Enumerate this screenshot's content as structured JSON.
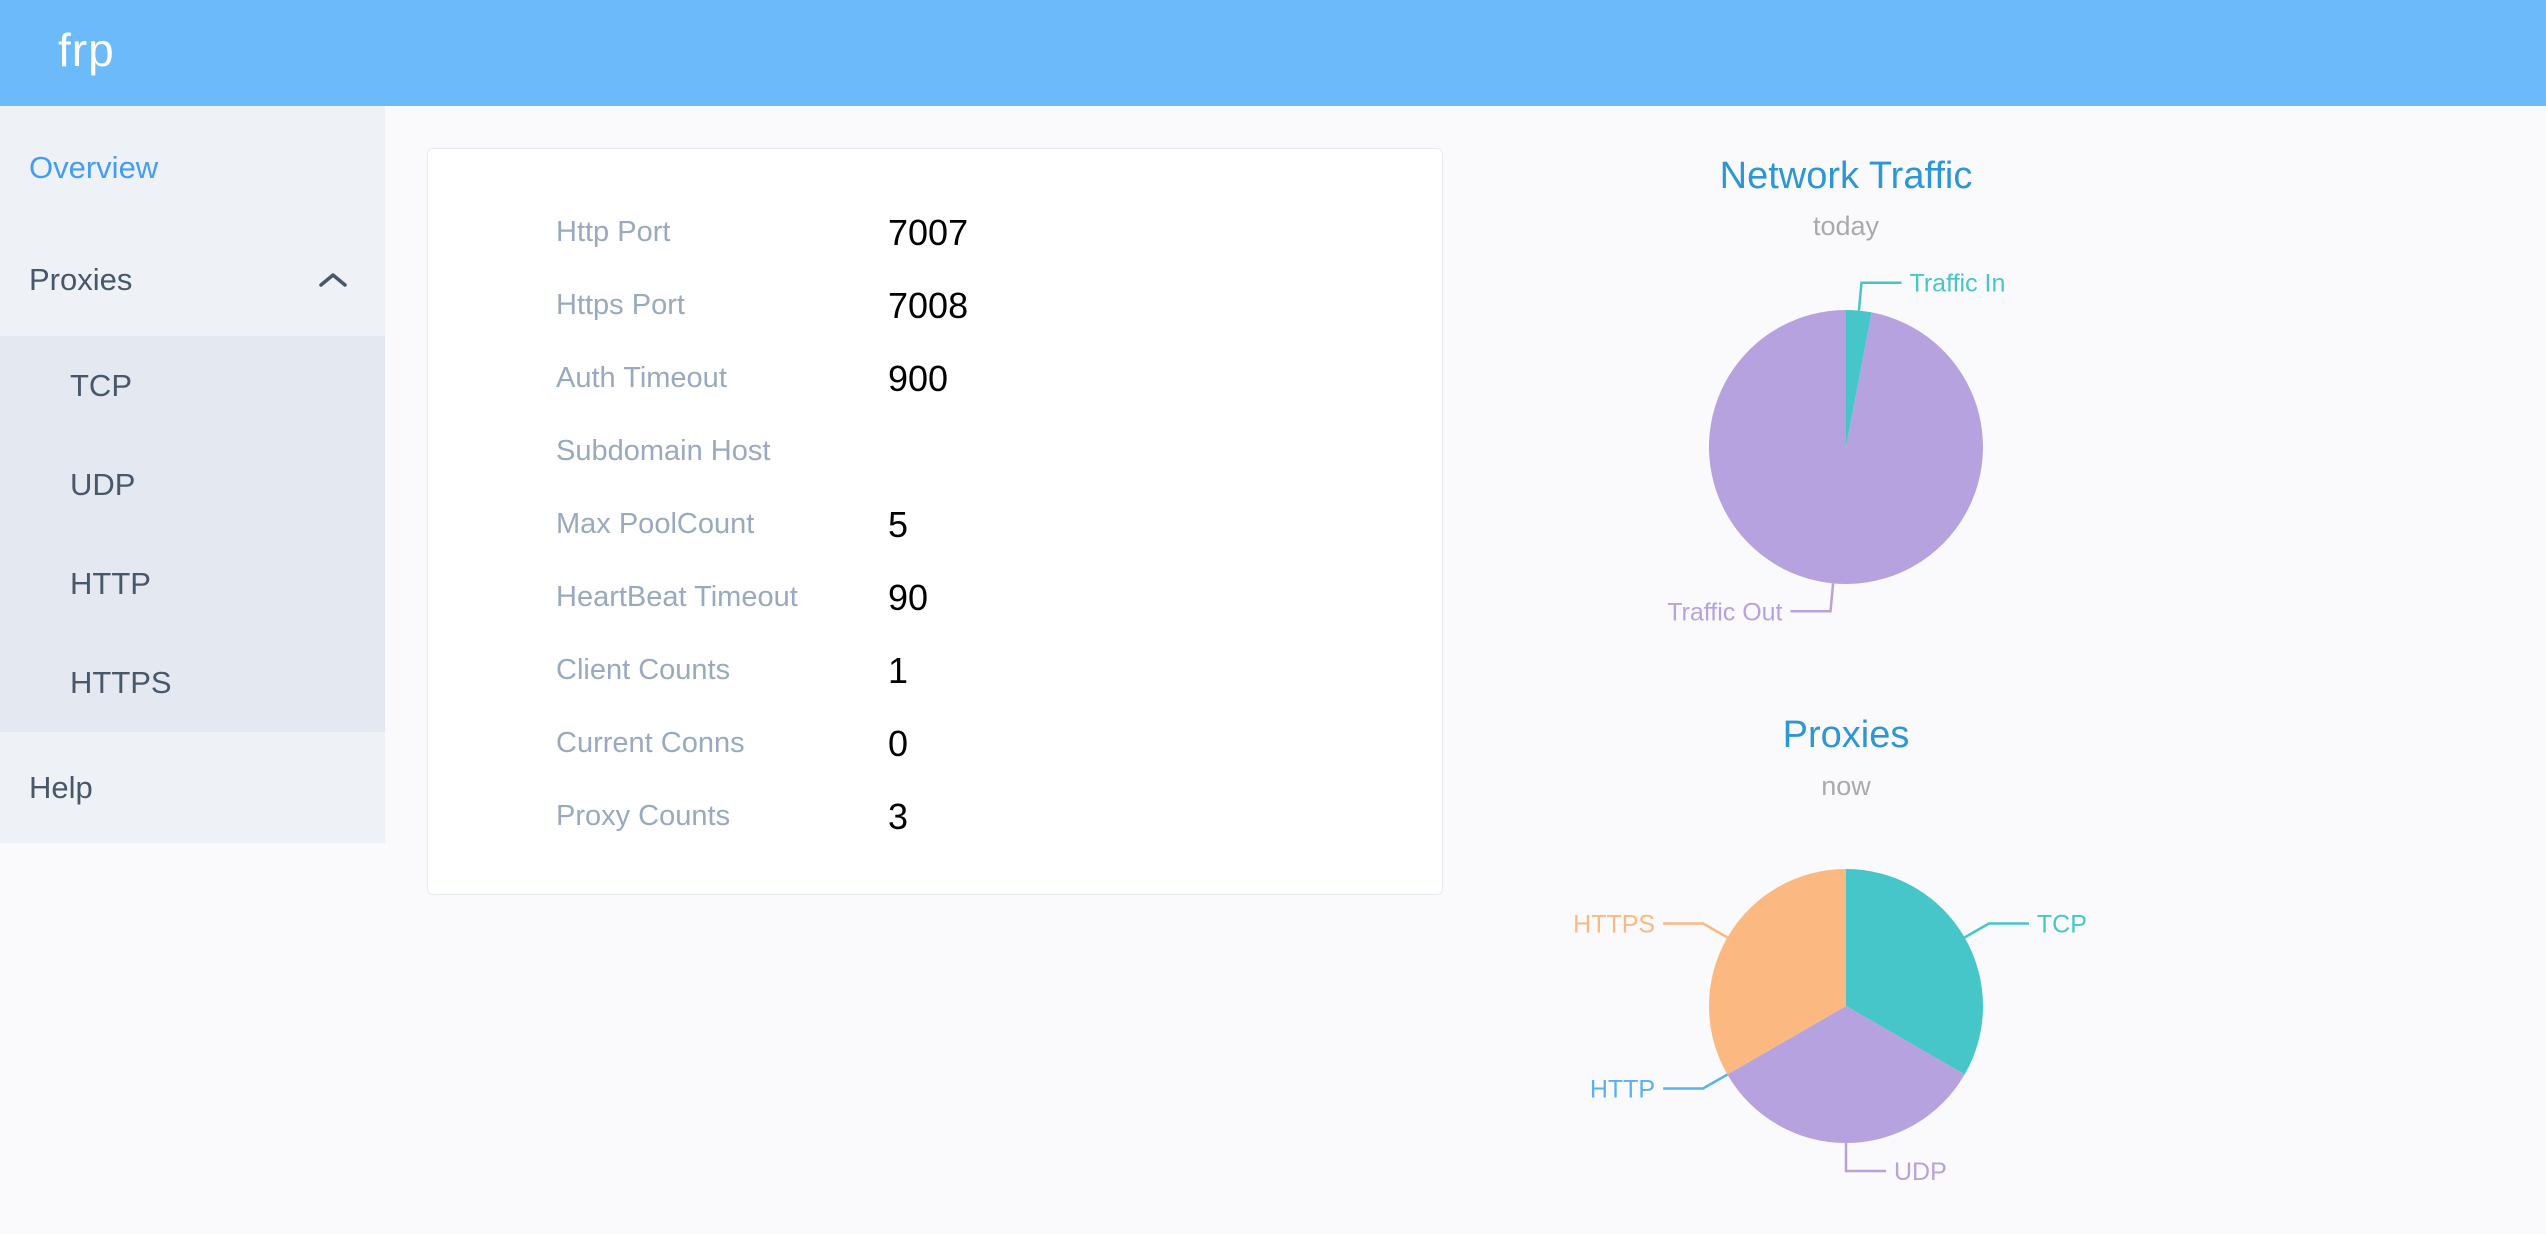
{
  "header": {
    "logo": "frp"
  },
  "sidebar": {
    "items": [
      {
        "id": "overview",
        "label": "Overview",
        "active": true
      },
      {
        "id": "proxies",
        "label": "Proxies",
        "expanded": true,
        "children": [
          "TCP",
          "UDP",
          "HTTP",
          "HTTPS"
        ]
      },
      {
        "id": "help",
        "label": "Help"
      }
    ]
  },
  "overview_card": {
    "rows": [
      {
        "label": "Http Port",
        "value": "7007"
      },
      {
        "label": "Https Port",
        "value": "7008"
      },
      {
        "label": "Auth Timeout",
        "value": "900"
      },
      {
        "label": "Subdomain Host",
        "value": ""
      },
      {
        "label": "Max PoolCount",
        "value": "5"
      },
      {
        "label": "HeartBeat Timeout",
        "value": "90"
      },
      {
        "label": "Client Counts",
        "value": "1"
      },
      {
        "label": "Current Conns",
        "value": "0"
      },
      {
        "label": "Proxy Counts",
        "value": "3"
      }
    ]
  },
  "chart_data": [
    {
      "type": "pie",
      "title": "Network Traffic",
      "subtitle": "today",
      "legend_position": "labels-with-leader-lines",
      "note": "shares estimated from slice angles",
      "slices": [
        {
          "label": "Traffic In",
          "value": 3,
          "color": "#46C6C9"
        },
        {
          "label": "Traffic Out",
          "value": 97,
          "color": "#B6A2DE"
        }
      ]
    },
    {
      "type": "pie",
      "title": "Proxies",
      "subtitle": "now",
      "legend_position": "labels-with-leader-lines",
      "note": "proxy counts by type; HTTP is zero",
      "slices": [
        {
          "label": "TCP",
          "value": 1,
          "color": "#46C6C9"
        },
        {
          "label": "UDP",
          "value": 1,
          "color": "#B6A2DE"
        },
        {
          "label": "HTTP",
          "value": 0,
          "color": "#5AB1EF"
        },
        {
          "label": "HTTPS",
          "value": 1,
          "color": "#FBB981"
        }
      ]
    }
  ],
  "colors": {
    "header_bg": "#6DBAFB",
    "main_bg": "#FAFAFC",
    "sidebar_bg": "#EEF1F6",
    "submenu_bg": "#E4E8F1",
    "menu_text": "#48576A",
    "active_link": "#449DF4",
    "card_border": "#E6EAF3",
    "card_label": "#99A9BF",
    "chart_title": "#2D96D7",
    "chart_subtitle": "#AAAAAA"
  }
}
